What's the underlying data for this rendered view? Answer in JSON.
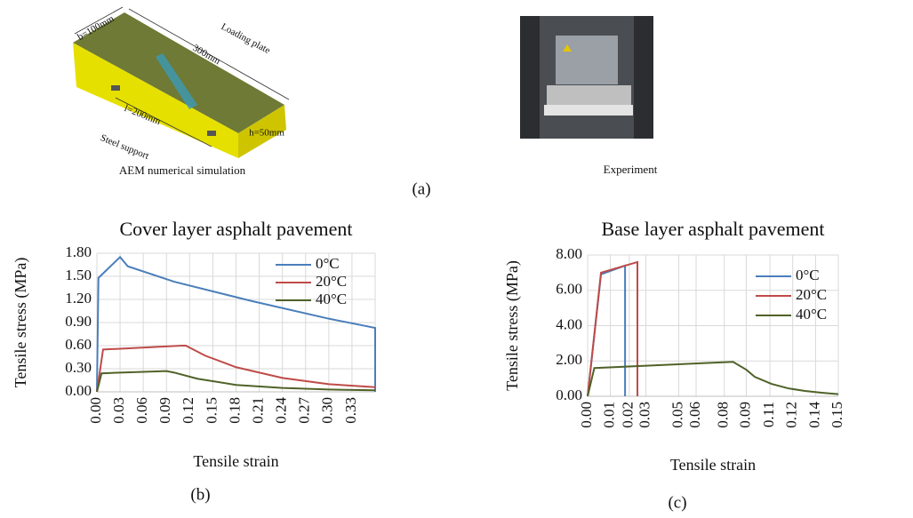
{
  "figure_a": {
    "simulation": {
      "labels": [
        "b=100mm",
        "300mm",
        "Loading plate",
        "l=200mm",
        "Steel support",
        "h=50mm"
      ],
      "caption": "AEM numerical simulation"
    },
    "experiment": {
      "caption": "Experiment"
    },
    "panel_label": "(a)"
  },
  "chart_data": [
    {
      "type": "line",
      "title": "Cover layer asphalt pavement",
      "xlabel": "Tensile strain",
      "ylabel": "Tensile stress (MPa)",
      "panel_label": "(b)",
      "xlim": [
        0,
        0.36
      ],
      "ylim": [
        0,
        1.8
      ],
      "xticks": [
        {
          "value": 0,
          "label": "0.00"
        },
        0.03,
        0.06,
        0.09,
        {
          "value": 0.12,
          "label": "0.12"
        },
        0.15,
        0.18,
        0.21,
        0.24,
        0.27,
        {
          "value": 0.3,
          "label": "0.30"
        },
        0.33
      ],
      "yticks": [
        {
          "value": 0,
          "label": "0.00"
        },
        {
          "value": 0.3,
          "label": "0.30"
        },
        {
          "value": 0.6,
          "label": "0.60"
        },
        {
          "value": 0.9,
          "label": "0.90"
        },
        {
          "value": 1.2,
          "label": "1.20"
        },
        {
          "value": 1.5,
          "label": "1.50"
        },
        {
          "value": 1.8,
          "label": "1.80"
        }
      ],
      "grid": true,
      "legend": "upper right",
      "series": [
        {
          "name": "0°C",
          "color": "#4a7ebb",
          "x": [
            0,
            0.002,
            0.03,
            0.04,
            0.1,
            0.2,
            0.3,
            0.36,
            0.36
          ],
          "values": [
            0,
            1.48,
            1.75,
            1.63,
            1.43,
            1.18,
            0.95,
            0.83,
            0
          ]
        },
        {
          "name": "20°C",
          "color": "#be4b48",
          "x": [
            0,
            0.008,
            0.03,
            0.11,
            0.115,
            0.14,
            0.18,
            0.24,
            0.3,
            0.36
          ],
          "values": [
            0,
            0.55,
            0.56,
            0.6,
            0.6,
            0.47,
            0.32,
            0.18,
            0.1,
            0.06
          ]
        },
        {
          "name": "40°C",
          "color": "#4f6228",
          "x": [
            0,
            0.006,
            0.03,
            0.09,
            0.1,
            0.13,
            0.18,
            0.24,
            0.3,
            0.36
          ],
          "values": [
            0,
            0.24,
            0.25,
            0.27,
            0.25,
            0.17,
            0.09,
            0.05,
            0.03,
            0.02
          ]
        }
      ]
    },
    {
      "type": "line",
      "title": "Base layer asphalt pavement",
      "xlabel": "Tensile strain",
      "ylabel": "Tensile stress (MPa)",
      "panel_label": "(c)",
      "xlim": [
        0,
        0.15
      ],
      "ylim": [
        0,
        8
      ],
      "xticks": [
        {
          "value": 0,
          "label": "0.00"
        },
        {
          "value": 0.0136,
          "label": "0.01"
        },
        {
          "value": 0.0249,
          "label": "0.02"
        },
        {
          "value": 0.0349,
          "label": "0.03"
        },
        {
          "value": 0.0545,
          "label": "0.05"
        },
        {
          "value": 0.0649,
          "label": "0.06"
        },
        {
          "value": 0.0818,
          "label": "0.08"
        },
        {
          "value": 0.0949,
          "label": "0.09"
        },
        {
          "value": 0.1091,
          "label": "0.11"
        },
        {
          "value": 0.1227,
          "label": "0.12"
        },
        {
          "value": 0.1364,
          "label": "0.14"
        },
        {
          "value": 0.15,
          "label": "0.15"
        }
      ],
      "yticks": [
        {
          "value": 0,
          "label": "0.00"
        },
        {
          "value": 2,
          "label": "2.00"
        },
        {
          "value": 4,
          "label": "4.00"
        },
        {
          "value": 6,
          "label": "6.00"
        },
        {
          "value": 8,
          "label": "8.00"
        }
      ],
      "grid": true,
      "legend": "upper right",
      "series": [
        {
          "name": "0°C",
          "color": "#4a7ebb",
          "x": [
            0,
            0.008,
            0.0224,
            0.0224
          ],
          "values": [
            0,
            6.9,
            7.4,
            0
          ]
        },
        {
          "name": "20°C",
          "color": "#be4b48",
          "x": [
            0,
            0.008,
            0.0298,
            0.0298
          ],
          "values": [
            0,
            7.0,
            7.6,
            0
          ]
        },
        {
          "name": "40°C",
          "color": "#4f6228",
          "x": [
            0,
            0.004,
            0.087,
            0.095,
            0.1,
            0.11,
            0.12,
            0.13,
            0.14,
            0.15
          ],
          "values": [
            0,
            1.6,
            1.95,
            1.5,
            1.1,
            0.7,
            0.45,
            0.3,
            0.2,
            0.12
          ]
        }
      ]
    }
  ]
}
